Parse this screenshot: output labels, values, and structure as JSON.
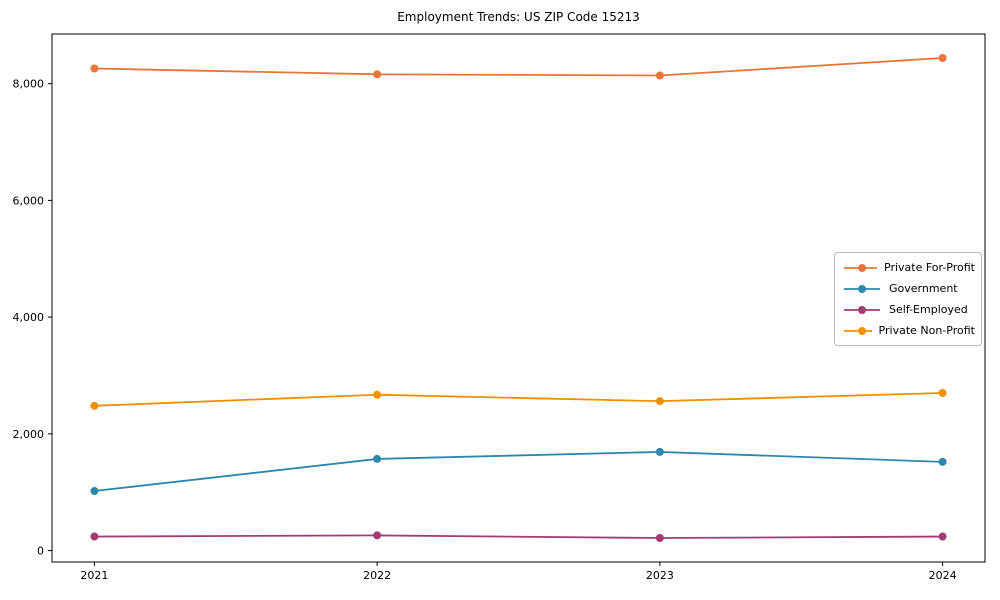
{
  "figure": {
    "background_color": "#ffffff",
    "text_color": "#000000",
    "axis_color": "#000000"
  },
  "chart_data": {
    "type": "line",
    "title": "Employment Trends: US ZIP Code 15213",
    "xlabel": "",
    "ylabel": "",
    "grid": false,
    "marker": "circle",
    "legend_position": "center-right",
    "x": [
      2021,
      2022,
      2023,
      2024
    ],
    "x_tick_labels": [
      "2021",
      "2022",
      "2023",
      "2024"
    ],
    "xlim": [
      2020.85,
      2024.15
    ],
    "ylim": [
      -196,
      8851
    ],
    "yticks": [
      {
        "value": 0,
        "label": "0"
      },
      {
        "value": 2000,
        "label": "2,000"
      },
      {
        "value": 4000,
        "label": "4,000"
      },
      {
        "value": 6000,
        "label": "6,000"
      },
      {
        "value": 8000,
        "label": "8,000"
      }
    ],
    "series": [
      {
        "name": "Private For-Profit",
        "color": "#E8743B",
        "values": [
          8260,
          8160,
          8140,
          8440
        ]
      },
      {
        "name": "Government",
        "color": "#2E86AB",
        "values": [
          1020,
          1570,
          1690,
          1520
        ]
      },
      {
        "name": "Self-Employed",
        "color": "#A23B72",
        "values": [
          240,
          260,
          215,
          240
        ]
      },
      {
        "name": "Private Non-Profit",
        "color": "#F18F01",
        "values": [
          2480,
          2670,
          2560,
          2700
        ]
      }
    ]
  }
}
